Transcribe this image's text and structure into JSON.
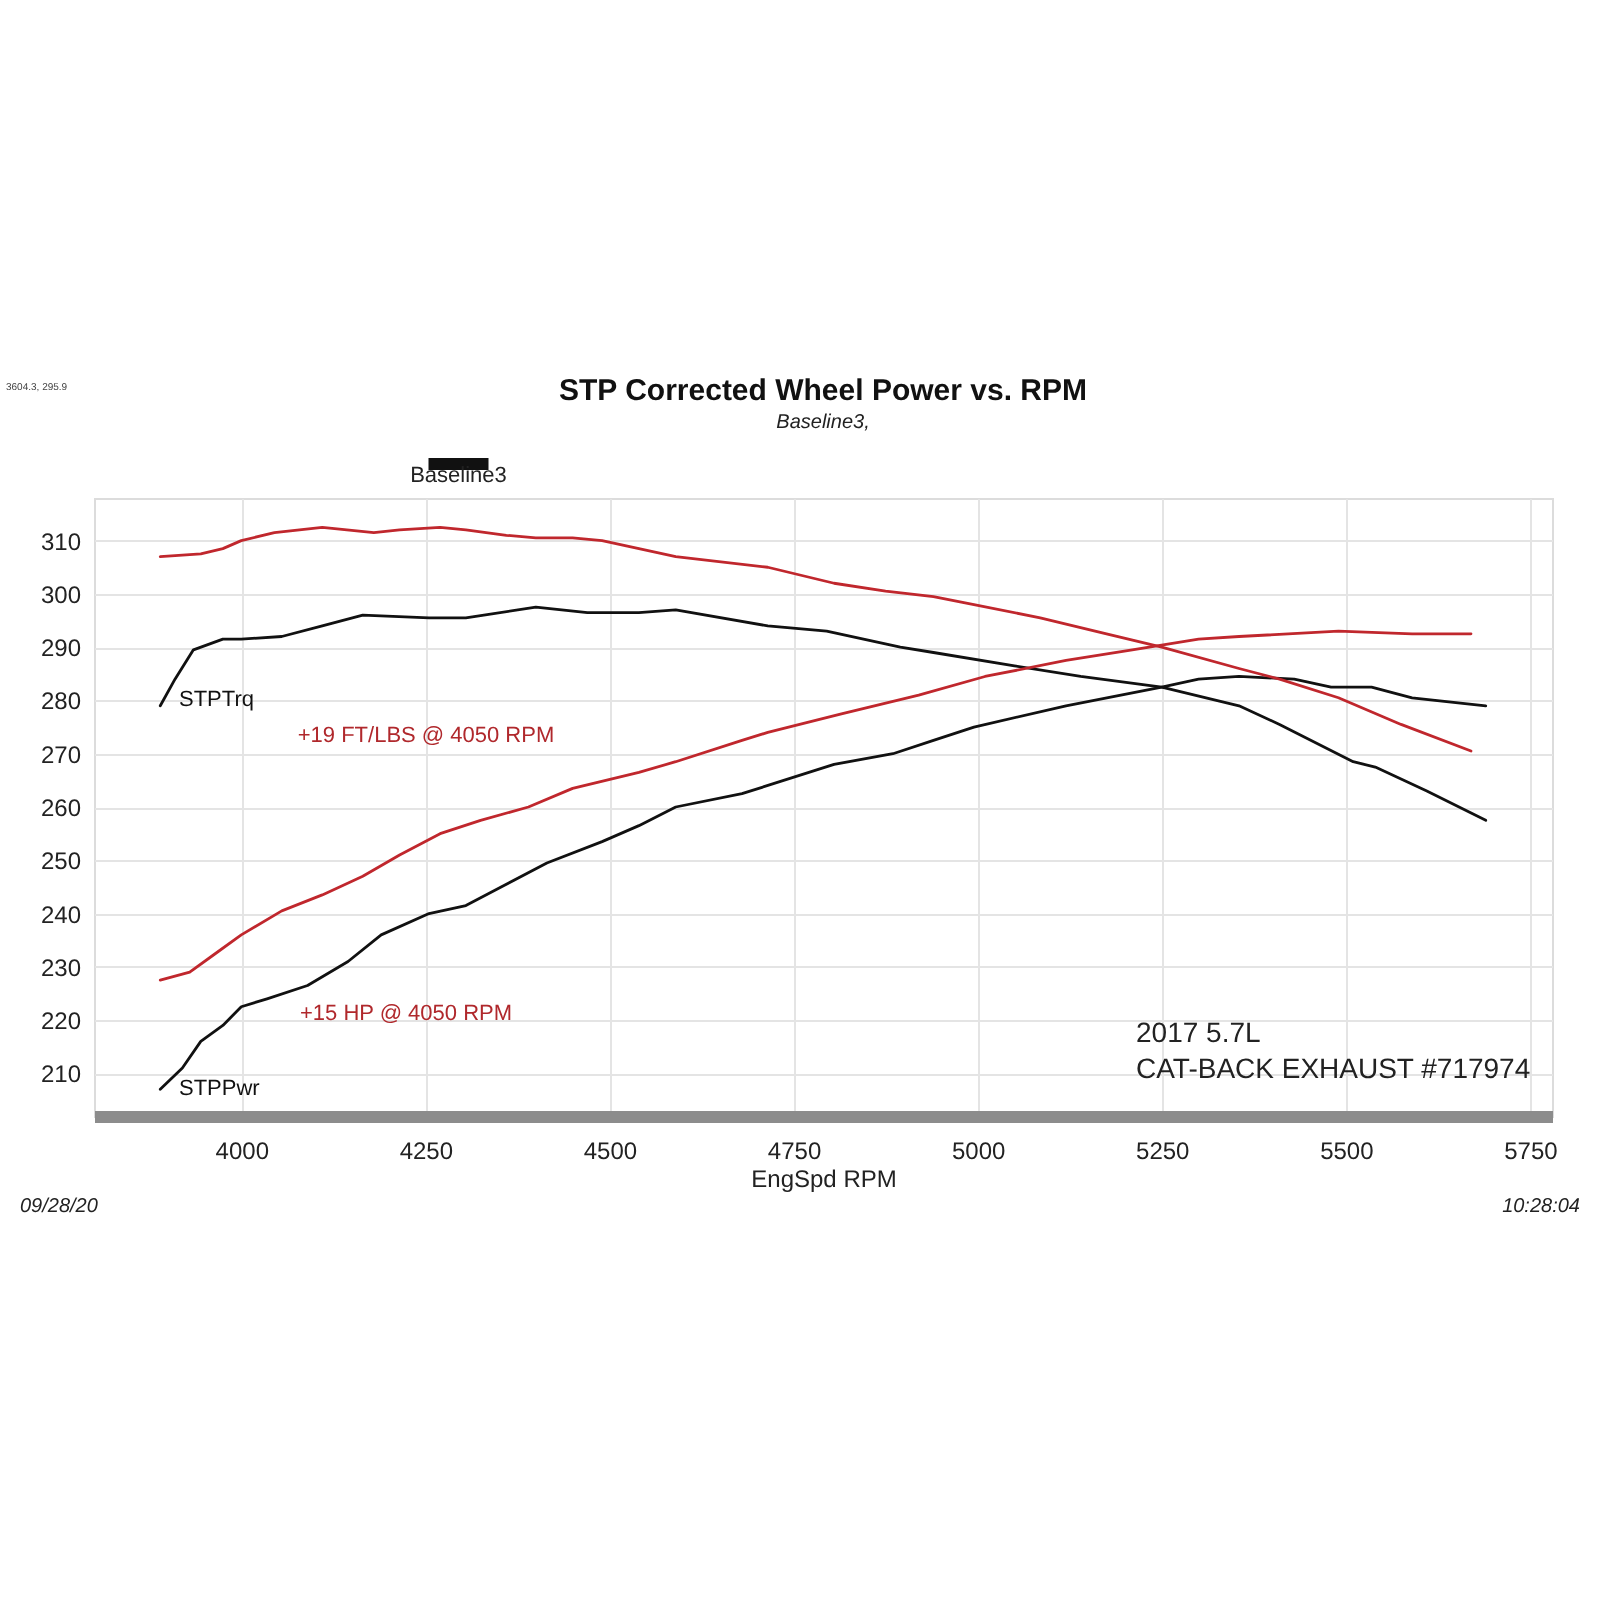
{
  "chart_data": {
    "type": "line",
    "title": "STP Corrected Wheel Power vs. RPM",
    "subtitle": "Baseline3,",
    "xlabel": "EngSpd RPM",
    "xlim": [
      3800,
      5780
    ],
    "xticks": [
      4000,
      4250,
      4500,
      4750,
      5000,
      5250,
      5500,
      5750
    ],
    "ylim": [
      202,
      318
    ],
    "yticks": [
      210,
      220,
      230,
      240,
      250,
      260,
      270,
      280,
      290,
      300,
      310
    ],
    "grid": true,
    "legend": "top",
    "marker": "none",
    "line_style": "solid",
    "series": [
      {
        "name": "Baseline3",
        "color": "#111111",
        "x": [
          3890,
          3910,
          3935,
          3975,
          4000,
          4055,
          4110,
          4165,
          4255,
          4305,
          4400,
          4470,
          4540,
          4590,
          4715,
          4795,
          4895,
          4940,
          5050,
          5140,
          5250,
          5355,
          5410,
          5510,
          5540,
          5610,
          5690
        ],
        "values": [
          279,
          284,
          289.5,
          291.5,
          291.5,
          292,
          294,
          296,
          295.5,
          295.5,
          297.5,
          296.5,
          296.5,
          297,
          294,
          293,
          290,
          289,
          286.5,
          284.5,
          282.5,
          279,
          275.5,
          268.5,
          267.5,
          263,
          257.5
        ]
      },
      {
        "color": "#111111",
        "x": [
          3890,
          3920,
          3945,
          3975,
          4000,
          4035,
          4090,
          4145,
          4190,
          4255,
          4305,
          4360,
          4415,
          4490,
          4540,
          4590,
          4680,
          4805,
          4885,
          4940,
          4995,
          5120,
          5250,
          5300,
          5355,
          5430,
          5480,
          5535,
          5590,
          5690
        ],
        "values": [
          207,
          211,
          216,
          219,
          222.5,
          224,
          226.5,
          231,
          236,
          240,
          241.5,
          245.5,
          249.5,
          253.5,
          256.5,
          260,
          262.5,
          268,
          270,
          272.5,
          275,
          279,
          282.5,
          284,
          284.5,
          284,
          282.5,
          282.5,
          280.5,
          279
        ]
      },
      {
        "color": "#c0272d",
        "x": [
          3890,
          3945,
          3975,
          4000,
          4045,
          4110,
          4180,
          4215,
          4270,
          4305,
          4360,
          4400,
          4450,
          4490,
          4540,
          4590,
          4715,
          4805,
          4875,
          4940,
          4995,
          5085,
          5175,
          5250,
          5355,
          5410,
          5490,
          5575,
          5670
        ],
        "values": [
          307,
          307.5,
          308.5,
          310,
          311.5,
          312.5,
          311.5,
          312,
          312.5,
          312,
          311,
          310.5,
          310.5,
          310,
          308.5,
          307,
          305,
          302,
          300.5,
          299.5,
          298,
          295.5,
          292.5,
          290,
          286,
          284,
          280.5,
          275.5,
          270.5
        ]
      },
      {
        "color": "#c0272d",
        "x": [
          3890,
          3930,
          3965,
          4000,
          4055,
          4110,
          4165,
          4215,
          4270,
          4325,
          4390,
          4450,
          4540,
          4590,
          4680,
          4715,
          4815,
          4920,
          5010,
          5120,
          5210,
          5300,
          5355,
          5490,
          5590,
          5670
        ],
        "values": [
          227.5,
          229,
          232.5,
          236,
          240.5,
          243.5,
          247,
          251,
          255,
          257.5,
          260,
          263.5,
          266.5,
          268.5,
          272.5,
          274,
          277.5,
          281,
          284.5,
          287.5,
          289.5,
          291.5,
          292,
          293,
          292.5,
          292.5
        ]
      }
    ],
    "annotations": [
      "3604.3, 295.9",
      {
        "text": "STPTrq",
        "x": 3891,
        "y": 280
      },
      "+19 FT/LBS @ 4050 RPM",
      "+15 HP @ 4050 RPM",
      {
        "text": "STPPwr",
        "x": 3891,
        "y": 207
      },
      "2017 5.7L",
      "CAT-BACK EXHAUST #717974",
      "09/28/20",
      "10:28:04"
    ]
  }
}
